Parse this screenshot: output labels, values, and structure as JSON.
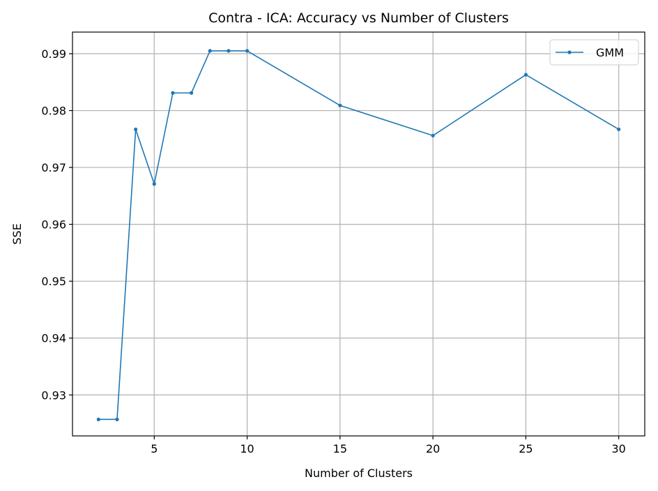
{
  "chart_data": {
    "type": "line",
    "title": "Contra - ICA: Accuracy vs Number of Clusters",
    "xlabel": "Number of Clusters",
    "ylabel": "SSE",
    "xlim": [
      0.6,
      31.4
    ],
    "ylim": [
      0.9228,
      0.9938
    ],
    "xticks": [
      5,
      10,
      15,
      20,
      25,
      30
    ],
    "xtick_labels": [
      "5",
      "10",
      "15",
      "20",
      "25",
      "30"
    ],
    "yticks": [
      0.93,
      0.94,
      0.95,
      0.96,
      0.97,
      0.98,
      0.99
    ],
    "ytick_labels": [
      "0.93",
      "0.94",
      "0.95",
      "0.96",
      "0.97",
      "0.98",
      "0.99"
    ],
    "grid": true,
    "legend_position": "top-right",
    "series": [
      {
        "name": "GMM",
        "color": "#1f77b4",
        "marker": "dot",
        "x": [
          2,
          3,
          4,
          5,
          6,
          7,
          8,
          9,
          10,
          15,
          20,
          25,
          30
        ],
        "y": [
          0.9257,
          0.9257,
          0.9767,
          0.9671,
          0.9831,
          0.9831,
          0.9905,
          0.9905,
          0.9905,
          0.9809,
          0.9756,
          0.9863,
          0.9767
        ]
      }
    ]
  }
}
